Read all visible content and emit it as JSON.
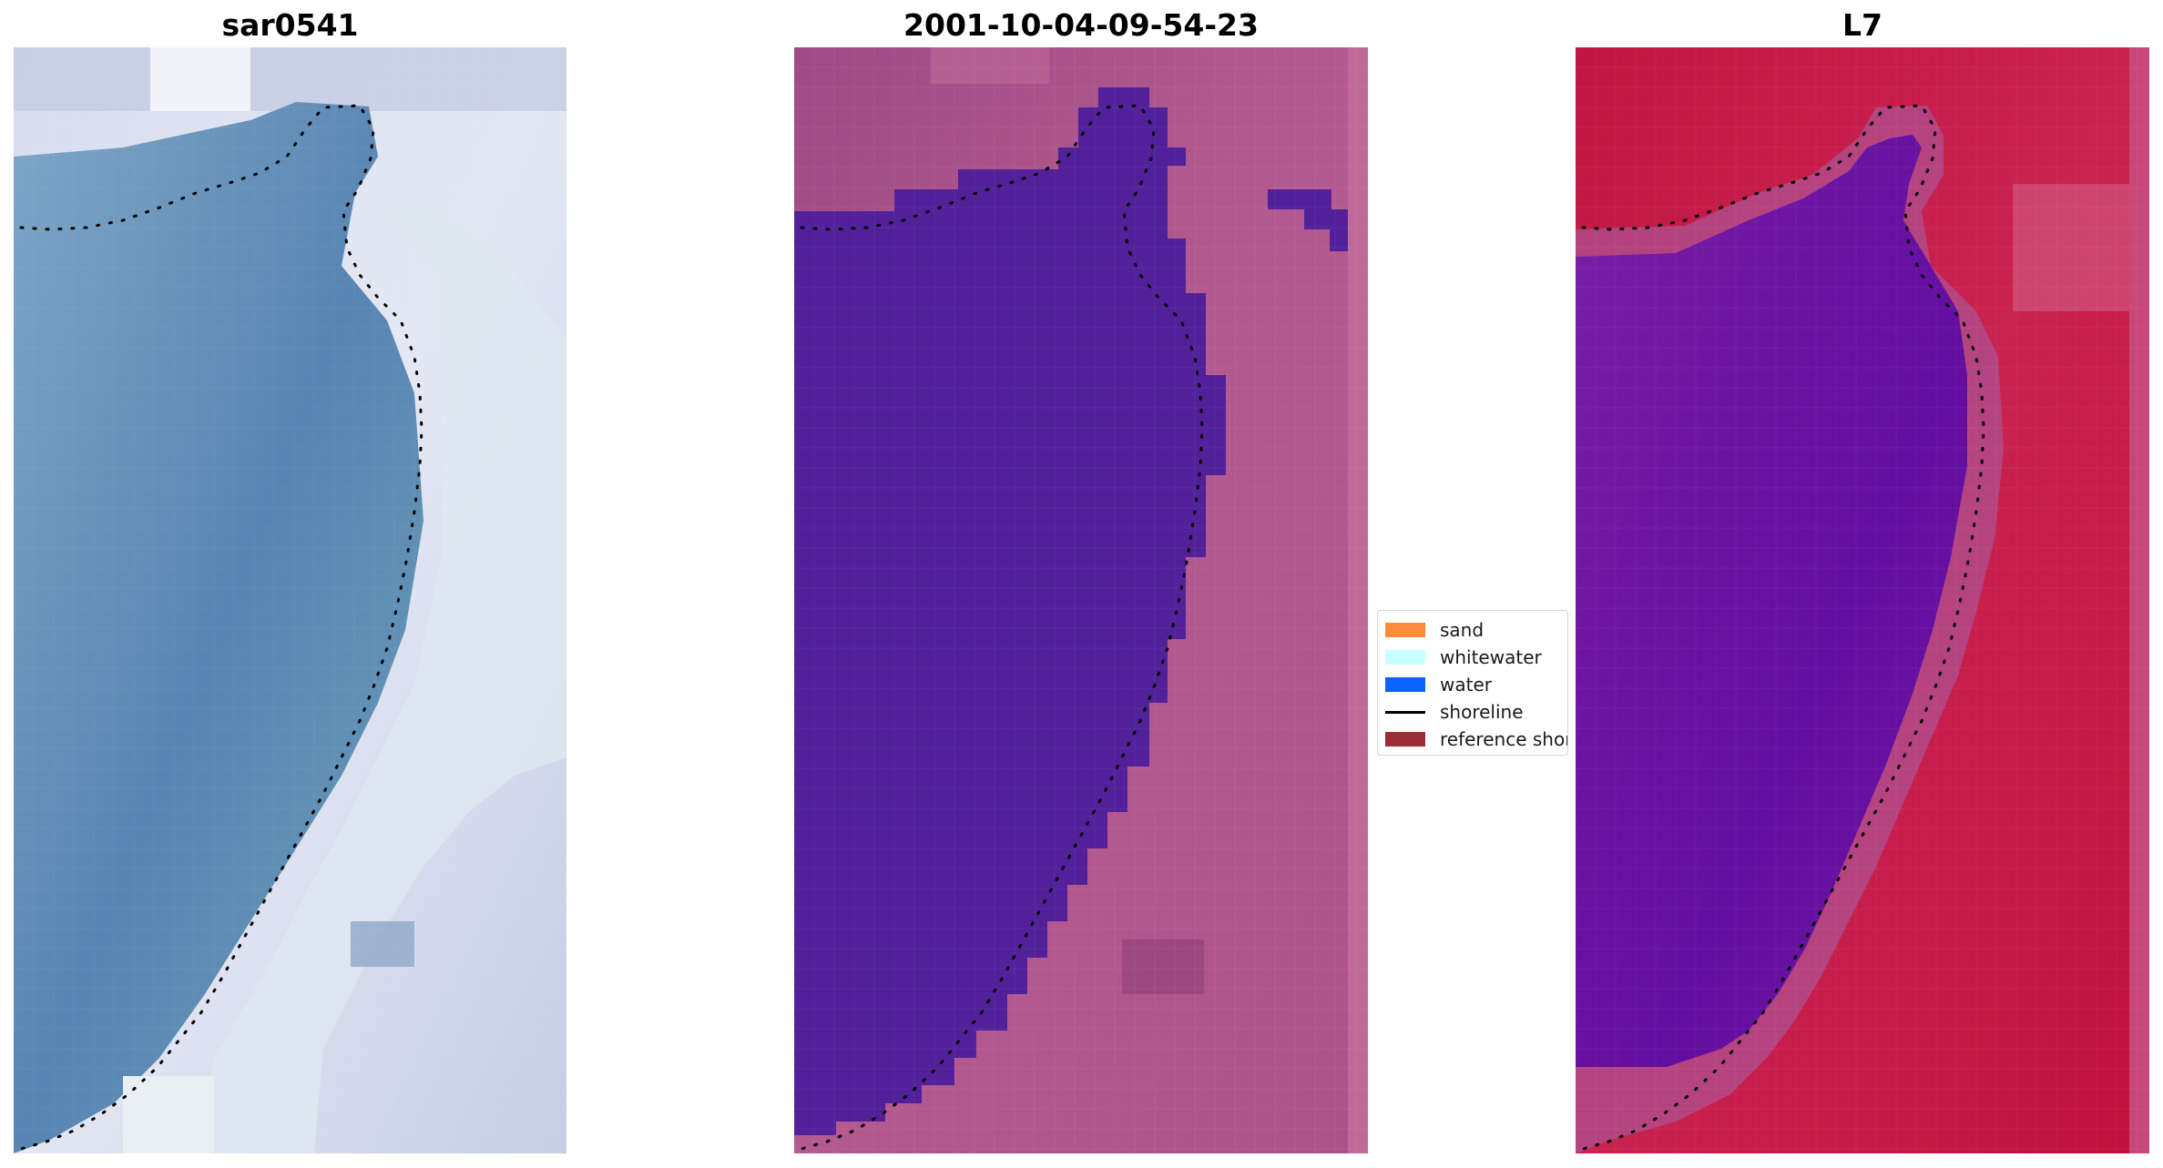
{
  "panels": [
    {
      "title": "sar0541"
    },
    {
      "title": "2001-10-04-09-54-23"
    },
    {
      "title": "L7"
    }
  ],
  "legend": {
    "items": [
      {
        "label": "sand",
        "kind": "patch",
        "color": "#ff8c3b"
      },
      {
        "label": "whitewater",
        "kind": "patch",
        "color": "#c8ffff"
      },
      {
        "label": "water",
        "kind": "patch",
        "color": "#0a64ff"
      },
      {
        "label": "shoreline",
        "kind": "line",
        "color": "#000000"
      },
      {
        "label": "reference shoreline",
        "kind": "patch",
        "color": "#9a2d35"
      }
    ]
  },
  "colors": {
    "rgb_water": "#5a8ab4",
    "rgb_land": "#cdd6ea",
    "classified_water": "#52219a",
    "classified_land": "#b3578e",
    "mndwi_water": "#6a14a0",
    "mndwi_land": "#c8144a"
  }
}
